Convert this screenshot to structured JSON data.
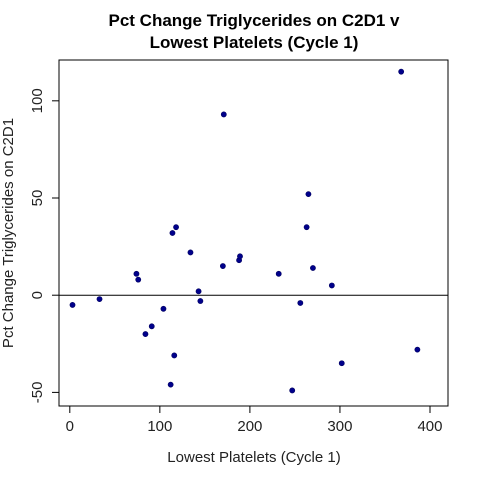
{
  "chart_data": {
    "type": "scatter",
    "title_lines": [
      "Pct Change Triglycerides on C2D1 v",
      "Lowest Platelets (Cycle 1)"
    ],
    "xlabel": "Lowest Platelets (Cycle 1)",
    "ylabel": "Pct Change Triglycerides on C2D1",
    "xlim": [
      -12,
      420
    ],
    "ylim": [
      -57,
      121
    ],
    "xticks": [
      0,
      100,
      200,
      300,
      400
    ],
    "yticks": [
      -50,
      0,
      50,
      100
    ],
    "reference_line_y": 0,
    "point_color": "#00008b",
    "points": [
      {
        "x": 3,
        "y": -5
      },
      {
        "x": 33,
        "y": -2
      },
      {
        "x": 74,
        "y": 11
      },
      {
        "x": 76,
        "y": 8
      },
      {
        "x": 84,
        "y": -20
      },
      {
        "x": 91,
        "y": -16
      },
      {
        "x": 104,
        "y": -7
      },
      {
        "x": 112,
        "y": -46
      },
      {
        "x": 114,
        "y": 32
      },
      {
        "x": 116,
        "y": -31
      },
      {
        "x": 118,
        "y": 35
      },
      {
        "x": 134,
        "y": 22
      },
      {
        "x": 143,
        "y": 2
      },
      {
        "x": 145,
        "y": -3
      },
      {
        "x": 170,
        "y": 15
      },
      {
        "x": 171,
        "y": 93
      },
      {
        "x": 188,
        "y": 18
      },
      {
        "x": 189,
        "y": 20
      },
      {
        "x": 232,
        "y": 11
      },
      {
        "x": 247,
        "y": -49
      },
      {
        "x": 256,
        "y": -4
      },
      {
        "x": 263,
        "y": 35
      },
      {
        "x": 265,
        "y": 52
      },
      {
        "x": 270,
        "y": 14
      },
      {
        "x": 291,
        "y": 5
      },
      {
        "x": 302,
        "y": -35
      },
      {
        "x": 368,
        "y": 115
      },
      {
        "x": 386,
        "y": -28
      }
    ]
  }
}
